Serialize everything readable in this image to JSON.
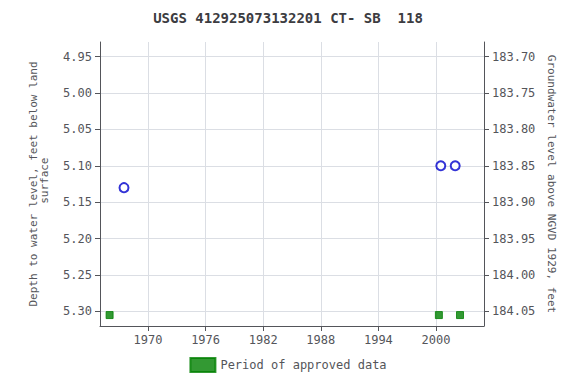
{
  "chart_data": {
    "type": "scatter",
    "title": "USGS 412925073132201 CT- SB  118",
    "ylabel": "Depth to water level, feet below land\n surface",
    "y2label": "Groundwater level above NGVD 1929, feet",
    "xlim": [
      1965,
      2005
    ],
    "xticks": [
      1970,
      1976,
      1982,
      1988,
      1994,
      2000
    ],
    "ylim": [
      5.32,
      4.93
    ],
    "yticks": [
      4.95,
      {
        "value": 5.0,
        "label": "5.00"
      },
      5.05,
      {
        "value": 5.1,
        "label": "5.10"
      },
      5.15,
      {
        "value": 5.2,
        "label": "5.20"
      },
      5.25,
      {
        "value": 5.3,
        "label": "5.30"
      }
    ],
    "y2lim": [
      184.07,
      183.68
    ],
    "y2ticks": [
      184.05,
      {
        "value": 184.0,
        "label": "184.00"
      },
      183.95,
      {
        "value": 183.9,
        "label": "183.90"
      },
      183.85,
      {
        "value": 183.8,
        "label": "183.80"
      },
      183.75,
      {
        "value": 183.7,
        "label": "183.70"
      }
    ],
    "series": [
      {
        "x": [
          1967.5,
          2000.5,
          2002.0
        ],
        "values": [
          5.13,
          5.1,
          5.1
        ],
        "color": "#0000cc",
        "marker": "circle"
      },
      {
        "name": "Period of approved data",
        "x": [
          1966.0,
          2000.3,
          2002.5
        ],
        "values": [
          5.305,
          5.305,
          5.305
        ],
        "color": "#008000",
        "marker": "square"
      }
    ],
    "grid": true,
    "legend": "bottom"
  }
}
